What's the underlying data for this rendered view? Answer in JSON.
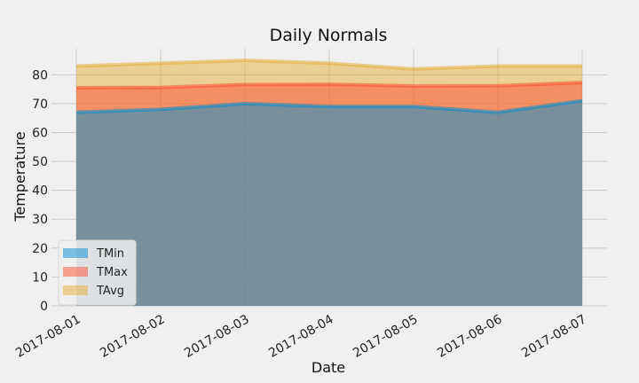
{
  "chart_data": {
    "type": "area",
    "title": "Daily Normals",
    "xlabel": "Date",
    "ylabel": "Temperature",
    "x": [
      "2017-08-01",
      "2017-08-02",
      "2017-08-03",
      "2017-08-04",
      "2017-08-05",
      "2017-08-06",
      "2017-08-07"
    ],
    "ylim": [
      0,
      89
    ],
    "yticks": [
      0,
      10,
      20,
      30,
      40,
      50,
      60,
      70,
      80
    ],
    "grid": true,
    "legend_position": "lower-left",
    "stacked": false,
    "series": [
      {
        "name": "TMin",
        "values": [
          67,
          68,
          70,
          69,
          69,
          67,
          71
        ],
        "color": "#008fd5"
      },
      {
        "name": "TMax",
        "values": [
          75.5,
          75.6,
          76.6,
          76.7,
          76.1,
          76.2,
          77.3
        ],
        "color": "#fc4f30"
      },
      {
        "name": "TAvg",
        "values": [
          83,
          84,
          85,
          84,
          82,
          83,
          83
        ],
        "color": "#e5ae38"
      }
    ]
  }
}
